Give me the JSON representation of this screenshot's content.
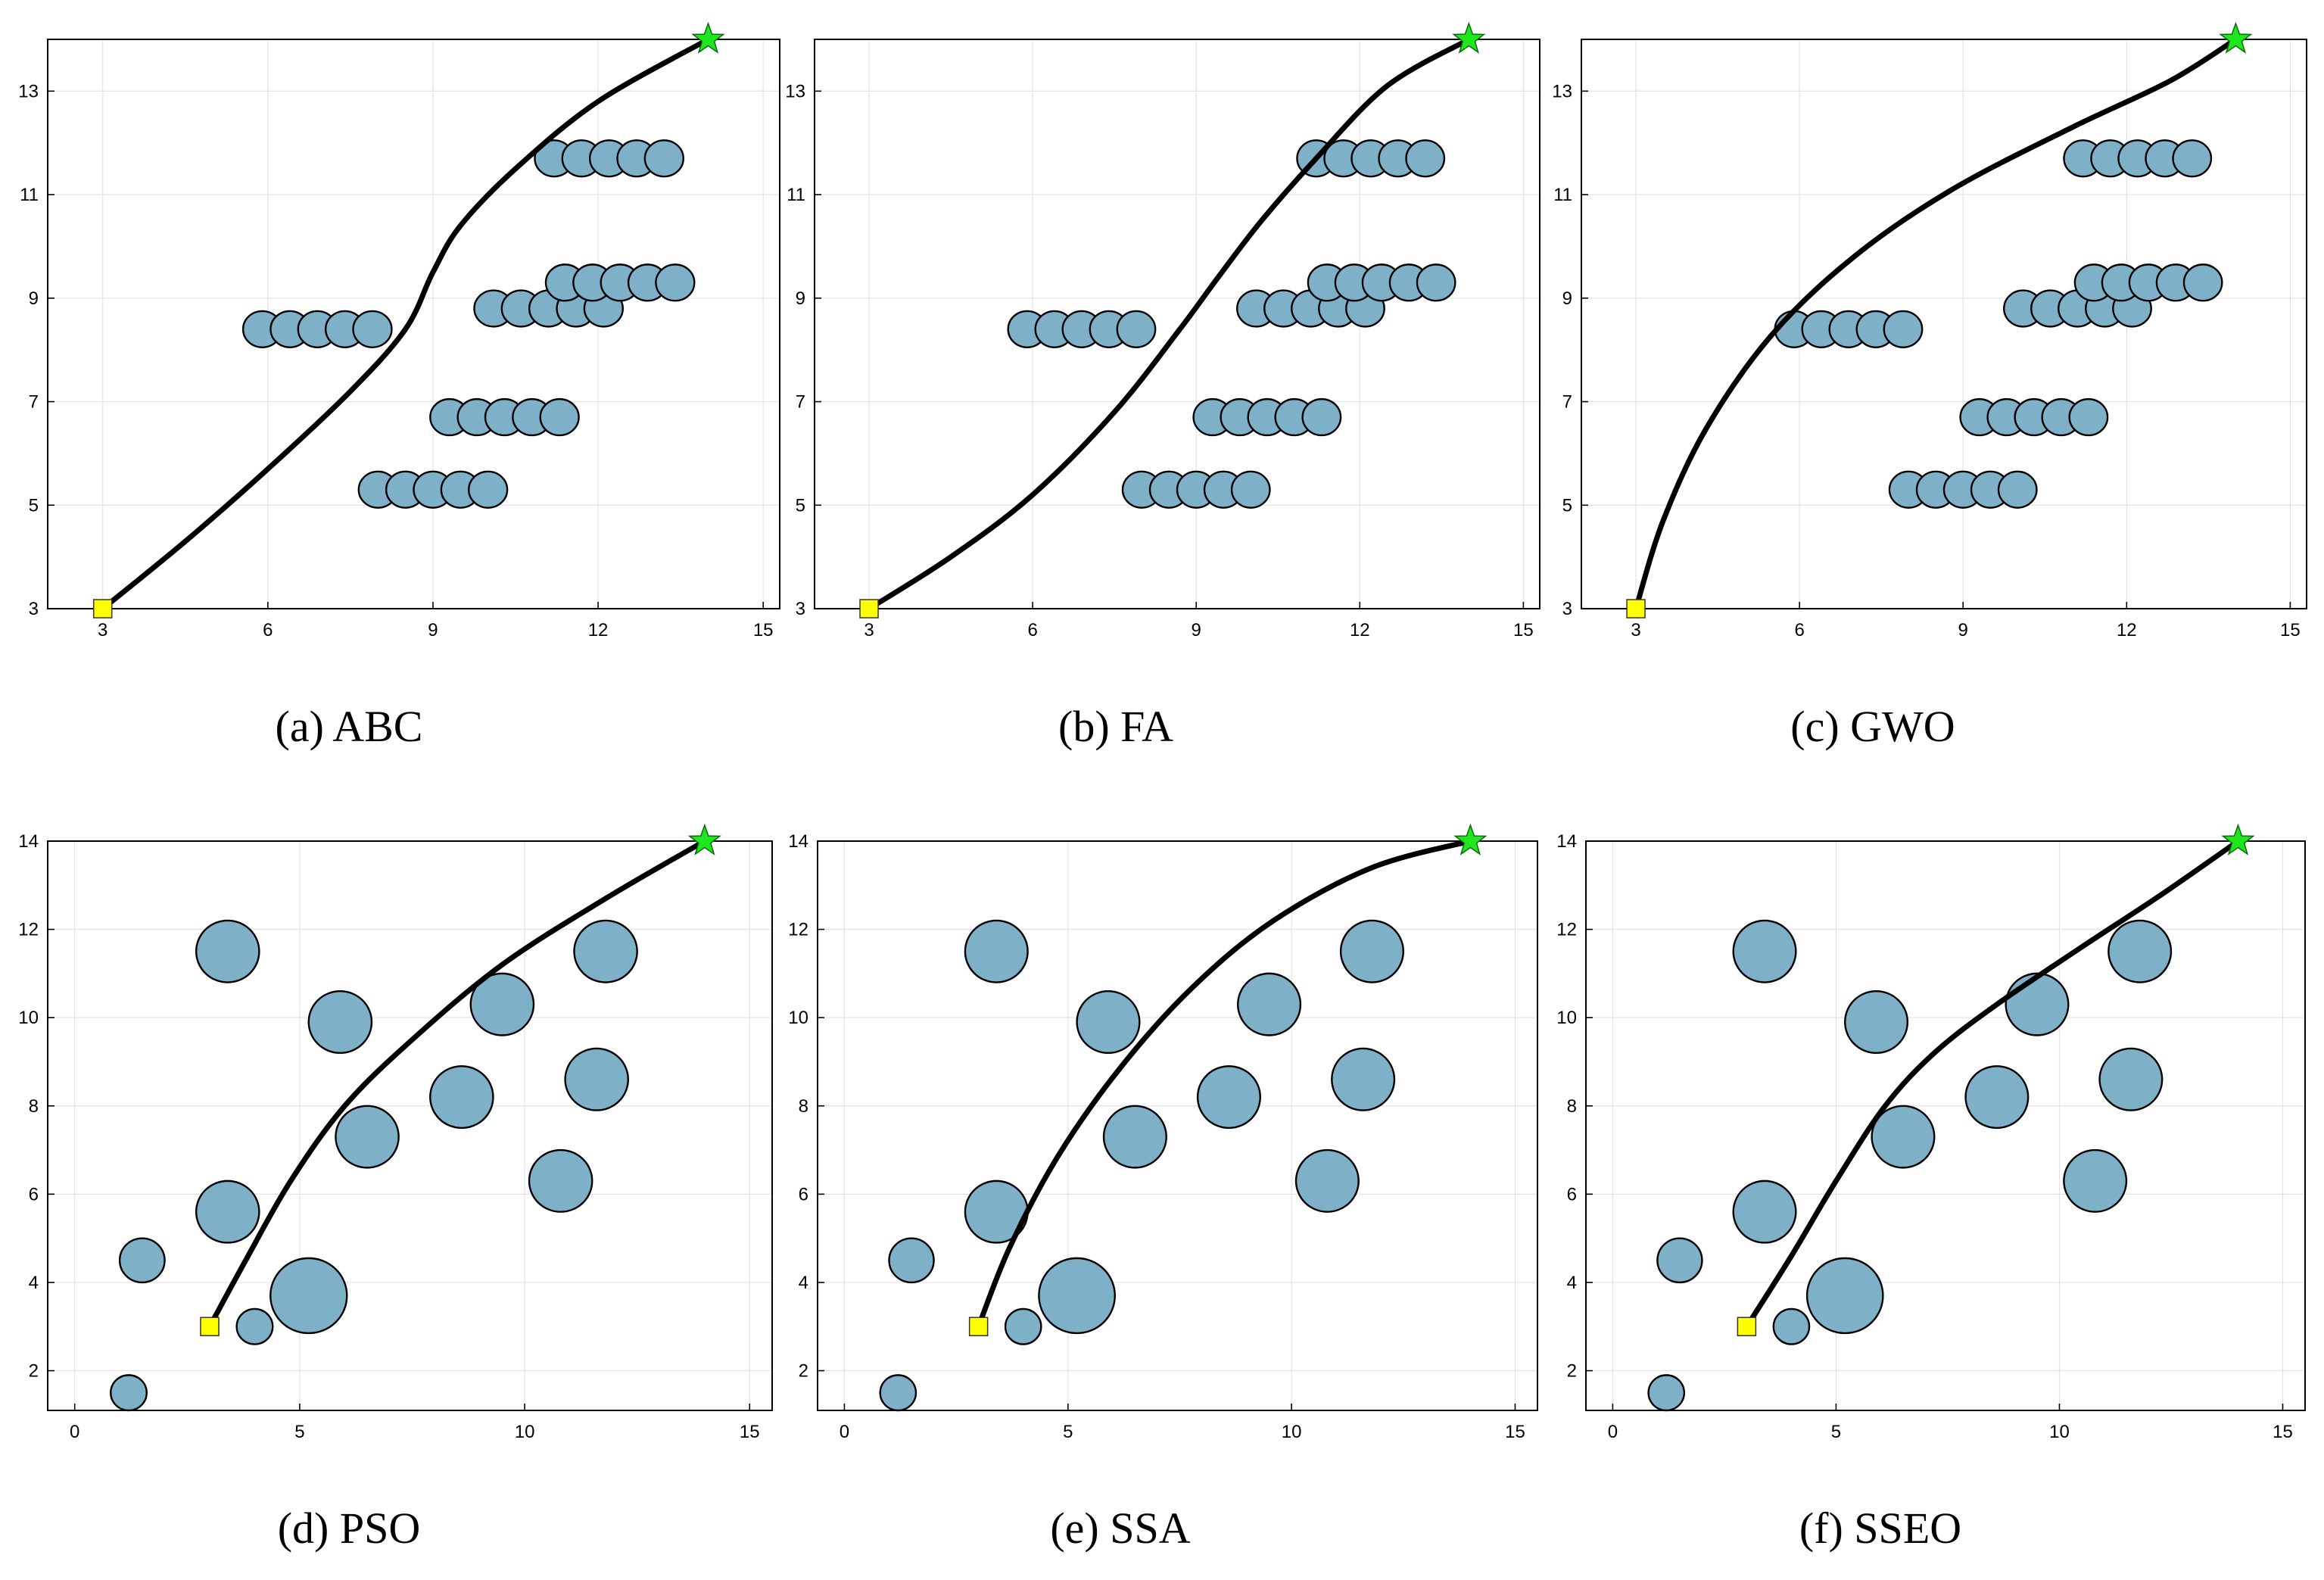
{
  "colors": {
    "obstacle_fill": "#7eb1c8",
    "obstacle_stroke": "#000000",
    "path": "#000000",
    "grid": "#e3e3e3",
    "start_fill": "#ffff00",
    "goal_fill": "#1fe61f"
  },
  "chart_data": [
    {
      "type": "scatter",
      "title": "(a) ABC",
      "xlim": [
        2,
        15.3
      ],
      "ylim": [
        3,
        14
      ],
      "xticks": [
        3,
        6,
        9,
        12,
        15
      ],
      "yticks": [
        3,
        5,
        7,
        9,
        11,
        13
      ],
      "start": [
        3,
        3
      ],
      "goal": [
        14,
        14
      ],
      "obstacles": [
        {
          "x": 5.9,
          "y": 8.4,
          "r": 0.35
        },
        {
          "x": 6.4,
          "y": 8.4,
          "r": 0.35
        },
        {
          "x": 6.9,
          "y": 8.4,
          "r": 0.35
        },
        {
          "x": 7.4,
          "y": 8.4,
          "r": 0.35
        },
        {
          "x": 7.9,
          "y": 8.4,
          "r": 0.35
        },
        {
          "x": 8.0,
          "y": 5.3,
          "r": 0.35
        },
        {
          "x": 8.5,
          "y": 5.3,
          "r": 0.35
        },
        {
          "x": 9.0,
          "y": 5.3,
          "r": 0.35
        },
        {
          "x": 9.5,
          "y": 5.3,
          "r": 0.35
        },
        {
          "x": 10.0,
          "y": 5.3,
          "r": 0.35
        },
        {
          "x": 9.3,
          "y": 6.7,
          "r": 0.35
        },
        {
          "x": 9.8,
          "y": 6.7,
          "r": 0.35
        },
        {
          "x": 10.3,
          "y": 6.7,
          "r": 0.35
        },
        {
          "x": 10.8,
          "y": 6.7,
          "r": 0.35
        },
        {
          "x": 11.3,
          "y": 6.7,
          "r": 0.35
        },
        {
          "x": 10.1,
          "y": 8.8,
          "r": 0.35
        },
        {
          "x": 10.6,
          "y": 8.8,
          "r": 0.35
        },
        {
          "x": 11.1,
          "y": 8.8,
          "r": 0.35
        },
        {
          "x": 11.6,
          "y": 8.8,
          "r": 0.35
        },
        {
          "x": 12.1,
          "y": 8.8,
          "r": 0.35
        },
        {
          "x": 11.4,
          "y": 9.3,
          "r": 0.35
        },
        {
          "x": 11.9,
          "y": 9.3,
          "r": 0.35
        },
        {
          "x": 12.4,
          "y": 9.3,
          "r": 0.35
        },
        {
          "x": 12.9,
          "y": 9.3,
          "r": 0.35
        },
        {
          "x": 13.4,
          "y": 9.3,
          "r": 0.35
        },
        {
          "x": 11.2,
          "y": 11.7,
          "r": 0.35
        },
        {
          "x": 11.7,
          "y": 11.7,
          "r": 0.35
        },
        {
          "x": 12.2,
          "y": 11.7,
          "r": 0.35
        },
        {
          "x": 12.7,
          "y": 11.7,
          "r": 0.35
        },
        {
          "x": 13.2,
          "y": 11.7,
          "r": 0.35
        }
      ],
      "path": [
        [
          3,
          3
        ],
        [
          4.5,
          4.3
        ],
        [
          6,
          5.7
        ],
        [
          7.5,
          7.2
        ],
        [
          8.5,
          8.4
        ],
        [
          9.0,
          9.5
        ],
        [
          9.5,
          10.4
        ],
        [
          10.5,
          11.5
        ],
        [
          12,
          12.8
        ],
        [
          14,
          14
        ]
      ]
    },
    {
      "type": "scatter",
      "title": "(b) FA",
      "xlim": [
        2,
        15.3
      ],
      "ylim": [
        3,
        14
      ],
      "xticks": [
        3,
        6,
        9,
        12,
        15
      ],
      "yticks": [
        3,
        5,
        7,
        9,
        11,
        13
      ],
      "start": [
        3,
        3
      ],
      "goal": [
        14,
        14
      ],
      "obstacles": [
        {
          "x": 5.9,
          "y": 8.4,
          "r": 0.35
        },
        {
          "x": 6.4,
          "y": 8.4,
          "r": 0.35
        },
        {
          "x": 6.9,
          "y": 8.4,
          "r": 0.35
        },
        {
          "x": 7.4,
          "y": 8.4,
          "r": 0.35
        },
        {
          "x": 7.9,
          "y": 8.4,
          "r": 0.35
        },
        {
          "x": 8.0,
          "y": 5.3,
          "r": 0.35
        },
        {
          "x": 8.5,
          "y": 5.3,
          "r": 0.35
        },
        {
          "x": 9.0,
          "y": 5.3,
          "r": 0.35
        },
        {
          "x": 9.5,
          "y": 5.3,
          "r": 0.35
        },
        {
          "x": 10.0,
          "y": 5.3,
          "r": 0.35
        },
        {
          "x": 9.3,
          "y": 6.7,
          "r": 0.35
        },
        {
          "x": 9.8,
          "y": 6.7,
          "r": 0.35
        },
        {
          "x": 10.3,
          "y": 6.7,
          "r": 0.35
        },
        {
          "x": 10.8,
          "y": 6.7,
          "r": 0.35
        },
        {
          "x": 11.3,
          "y": 6.7,
          "r": 0.35
        },
        {
          "x": 10.1,
          "y": 8.8,
          "r": 0.35
        },
        {
          "x": 10.6,
          "y": 8.8,
          "r": 0.35
        },
        {
          "x": 11.1,
          "y": 8.8,
          "r": 0.35
        },
        {
          "x": 11.6,
          "y": 8.8,
          "r": 0.35
        },
        {
          "x": 12.1,
          "y": 8.8,
          "r": 0.35
        },
        {
          "x": 11.4,
          "y": 9.3,
          "r": 0.35
        },
        {
          "x": 11.9,
          "y": 9.3,
          "r": 0.35
        },
        {
          "x": 12.4,
          "y": 9.3,
          "r": 0.35
        },
        {
          "x": 12.9,
          "y": 9.3,
          "r": 0.35
        },
        {
          "x": 13.4,
          "y": 9.3,
          "r": 0.35
        },
        {
          "x": 11.2,
          "y": 11.7,
          "r": 0.35
        },
        {
          "x": 11.7,
          "y": 11.7,
          "r": 0.35
        },
        {
          "x": 12.2,
          "y": 11.7,
          "r": 0.35
        },
        {
          "x": 12.7,
          "y": 11.7,
          "r": 0.35
        },
        {
          "x": 13.2,
          "y": 11.7,
          "r": 0.35
        }
      ],
      "path": [
        [
          3,
          3
        ],
        [
          4.5,
          4
        ],
        [
          6,
          5.2
        ],
        [
          7.5,
          6.8
        ],
        [
          8.7,
          8.4
        ],
        [
          9.4,
          9.4
        ],
        [
          10.2,
          10.5
        ],
        [
          11.2,
          11.7
        ],
        [
          12.5,
          13.1
        ],
        [
          14,
          14
        ]
      ]
    },
    {
      "type": "scatter",
      "title": "(c) GWO",
      "xlim": [
        2,
        15.3
      ],
      "ylim": [
        3,
        14
      ],
      "xticks": [
        3,
        6,
        9,
        12,
        15
      ],
      "yticks": [
        3,
        5,
        7,
        9,
        11,
        13
      ],
      "start": [
        3,
        3
      ],
      "goal": [
        14,
        14
      ],
      "obstacles": [
        {
          "x": 5.9,
          "y": 8.4,
          "r": 0.35
        },
        {
          "x": 6.4,
          "y": 8.4,
          "r": 0.35
        },
        {
          "x": 6.9,
          "y": 8.4,
          "r": 0.35
        },
        {
          "x": 7.4,
          "y": 8.4,
          "r": 0.35
        },
        {
          "x": 7.9,
          "y": 8.4,
          "r": 0.35
        },
        {
          "x": 8.0,
          "y": 5.3,
          "r": 0.35
        },
        {
          "x": 8.5,
          "y": 5.3,
          "r": 0.35
        },
        {
          "x": 9.0,
          "y": 5.3,
          "r": 0.35
        },
        {
          "x": 9.5,
          "y": 5.3,
          "r": 0.35
        },
        {
          "x": 10.0,
          "y": 5.3,
          "r": 0.35
        },
        {
          "x": 9.3,
          "y": 6.7,
          "r": 0.35
        },
        {
          "x": 9.8,
          "y": 6.7,
          "r": 0.35
        },
        {
          "x": 10.3,
          "y": 6.7,
          "r": 0.35
        },
        {
          "x": 10.8,
          "y": 6.7,
          "r": 0.35
        },
        {
          "x": 11.3,
          "y": 6.7,
          "r": 0.35
        },
        {
          "x": 10.1,
          "y": 8.8,
          "r": 0.35
        },
        {
          "x": 10.6,
          "y": 8.8,
          "r": 0.35
        },
        {
          "x": 11.1,
          "y": 8.8,
          "r": 0.35
        },
        {
          "x": 11.6,
          "y": 8.8,
          "r": 0.35
        },
        {
          "x": 12.1,
          "y": 8.8,
          "r": 0.35
        },
        {
          "x": 11.4,
          "y": 9.3,
          "r": 0.35
        },
        {
          "x": 11.9,
          "y": 9.3,
          "r": 0.35
        },
        {
          "x": 12.4,
          "y": 9.3,
          "r": 0.35
        },
        {
          "x": 12.9,
          "y": 9.3,
          "r": 0.35
        },
        {
          "x": 13.4,
          "y": 9.3,
          "r": 0.35
        },
        {
          "x": 11.2,
          "y": 11.7,
          "r": 0.35
        },
        {
          "x": 11.7,
          "y": 11.7,
          "r": 0.35
        },
        {
          "x": 12.2,
          "y": 11.7,
          "r": 0.35
        },
        {
          "x": 12.7,
          "y": 11.7,
          "r": 0.35
        },
        {
          "x": 13.2,
          "y": 11.7,
          "r": 0.35
        }
      ],
      "path": [
        [
          3,
          3
        ],
        [
          3.5,
          4.7
        ],
        [
          4.3,
          6.5
        ],
        [
          5.5,
          8.3
        ],
        [
          7,
          9.8
        ],
        [
          8.8,
          11.1
        ],
        [
          11,
          12.3
        ],
        [
          12.8,
          13.2
        ],
        [
          14,
          14
        ]
      ]
    },
    {
      "type": "scatter",
      "title": "(d) PSO",
      "xlim": [
        -0.6,
        15.5
      ],
      "ylim": [
        1.1,
        14
      ],
      "xticks": [
        0,
        5,
        10,
        15
      ],
      "yticks": [
        2,
        4,
        6,
        8,
        10,
        12,
        14
      ],
      "start": [
        3,
        3
      ],
      "goal": [
        14,
        14
      ],
      "obstacles": [
        {
          "x": 1.2,
          "y": 1.5,
          "r": 0.4
        },
        {
          "x": 1.5,
          "y": 4.5,
          "r": 0.5
        },
        {
          "x": 3.4,
          "y": 11.5,
          "r": 0.7
        },
        {
          "x": 3.4,
          "y": 5.6,
          "r": 0.7
        },
        {
          "x": 4.0,
          "y": 3.0,
          "r": 0.4
        },
        {
          "x": 5.2,
          "y": 3.7,
          "r": 0.85
        },
        {
          "x": 5.9,
          "y": 9.9,
          "r": 0.7
        },
        {
          "x": 6.5,
          "y": 7.3,
          "r": 0.7
        },
        {
          "x": 8.6,
          "y": 8.2,
          "r": 0.7
        },
        {
          "x": 9.5,
          "y": 10.3,
          "r": 0.7
        },
        {
          "x": 10.8,
          "y": 6.3,
          "r": 0.7
        },
        {
          "x": 11.6,
          "y": 8.6,
          "r": 0.7
        },
        {
          "x": 11.8,
          "y": 11.5,
          "r": 0.7
        }
      ],
      "path": [
        [
          3,
          3
        ],
        [
          3.8,
          4.5
        ],
        [
          4.8,
          6.3
        ],
        [
          6,
          8
        ],
        [
          7.5,
          9.5
        ],
        [
          9.5,
          11.2
        ],
        [
          11.8,
          12.7
        ],
        [
          14,
          14
        ]
      ]
    },
    {
      "type": "scatter",
      "title": "(e) SSA",
      "xlim": [
        -0.6,
        15.5
      ],
      "ylim": [
        1.1,
        14
      ],
      "xticks": [
        0,
        5,
        10,
        15
      ],
      "yticks": [
        2,
        4,
        6,
        8,
        10,
        12,
        14
      ],
      "start": [
        3,
        3
      ],
      "goal": [
        14,
        14
      ],
      "obstacles": [
        {
          "x": 1.2,
          "y": 1.5,
          "r": 0.4
        },
        {
          "x": 1.5,
          "y": 4.5,
          "r": 0.5
        },
        {
          "x": 3.4,
          "y": 11.5,
          "r": 0.7
        },
        {
          "x": 3.4,
          "y": 5.6,
          "r": 0.7
        },
        {
          "x": 4.0,
          "y": 3.0,
          "r": 0.4
        },
        {
          "x": 5.2,
          "y": 3.7,
          "r": 0.85
        },
        {
          "x": 5.9,
          "y": 9.9,
          "r": 0.7
        },
        {
          "x": 6.5,
          "y": 7.3,
          "r": 0.7
        },
        {
          "x": 8.6,
          "y": 8.2,
          "r": 0.7
        },
        {
          "x": 9.5,
          "y": 10.3,
          "r": 0.7
        },
        {
          "x": 10.8,
          "y": 6.3,
          "r": 0.7
        },
        {
          "x": 11.6,
          "y": 8.6,
          "r": 0.7
        },
        {
          "x": 11.8,
          "y": 11.5,
          "r": 0.7
        }
      ],
      "path": [
        [
          3,
          3
        ],
        [
          3.7,
          4.8
        ],
        [
          4.8,
          6.9
        ],
        [
          6.2,
          8.9
        ],
        [
          7.8,
          10.7
        ],
        [
          9.6,
          12.2
        ],
        [
          11.8,
          13.4
        ],
        [
          14,
          14
        ]
      ]
    },
    {
      "type": "scatter",
      "title": "(f) SSEO",
      "xlim": [
        -0.6,
        15.5
      ],
      "ylim": [
        1.1,
        14
      ],
      "xticks": [
        0,
        5,
        10,
        15
      ],
      "yticks": [
        2,
        4,
        6,
        8,
        10,
        12,
        14
      ],
      "start": [
        3,
        3
      ],
      "goal": [
        14,
        14
      ],
      "obstacles": [
        {
          "x": 1.2,
          "y": 1.5,
          "r": 0.4
        },
        {
          "x": 1.5,
          "y": 4.5,
          "r": 0.5
        },
        {
          "x": 3.4,
          "y": 11.5,
          "r": 0.7
        },
        {
          "x": 3.4,
          "y": 5.6,
          "r": 0.7
        },
        {
          "x": 4.0,
          "y": 3.0,
          "r": 0.4
        },
        {
          "x": 5.2,
          "y": 3.7,
          "r": 0.85
        },
        {
          "x": 5.9,
          "y": 9.9,
          "r": 0.7
        },
        {
          "x": 6.5,
          "y": 7.3,
          "r": 0.7
        },
        {
          "x": 8.6,
          "y": 8.2,
          "r": 0.7
        },
        {
          "x": 9.5,
          "y": 10.3,
          "r": 0.7
        },
        {
          "x": 10.8,
          "y": 6.3,
          "r": 0.7
        },
        {
          "x": 11.6,
          "y": 8.6,
          "r": 0.7
        },
        {
          "x": 11.8,
          "y": 11.5,
          "r": 0.7
        }
      ],
      "path": [
        [
          3,
          3
        ],
        [
          4,
          4.6
        ],
        [
          5,
          6.3
        ],
        [
          6.1,
          8
        ],
        [
          7.2,
          9.2
        ],
        [
          8.6,
          10.3
        ],
        [
          10.5,
          11.6
        ],
        [
          12.3,
          12.8
        ],
        [
          14,
          14
        ]
      ]
    }
  ]
}
